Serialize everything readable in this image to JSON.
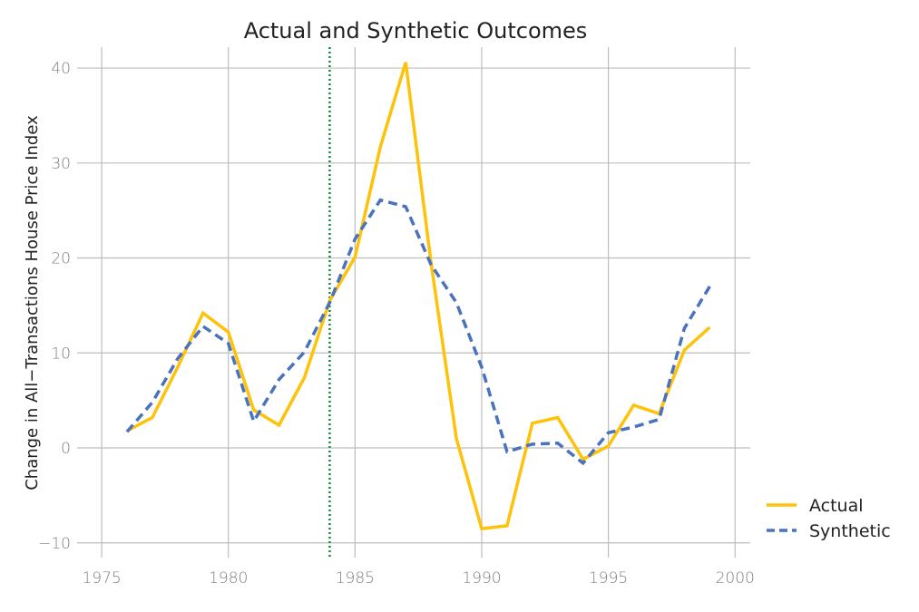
{
  "chart_data": {
    "type": "line",
    "title": "Actual and Synthetic Outcomes",
    "xlabel": "",
    "ylabel": "Change in All−Transactions House Price Index",
    "xlim": [
      1974.03,
      2000.6
    ],
    "ylim": [
      -11.55,
      42.2
    ],
    "xticks": [
      "1975",
      "1980",
      "1985",
      "1990",
      "1995",
      "2000"
    ],
    "xtick_values": [
      1975,
      1980,
      1985,
      1990,
      1995,
      2000
    ],
    "yticks": [
      "−10",
      "0",
      "10",
      "20",
      "30",
      "40"
    ],
    "ytick_values": [
      -10,
      0,
      10,
      20,
      30,
      40
    ],
    "grid": true,
    "legend_position": "right",
    "treatment_line": {
      "x": 1984,
      "color": "#1a8a3a",
      "style": "dotted"
    },
    "x": [
      1976,
      1977,
      1978,
      1979,
      1980,
      1981,
      1982,
      1983,
      1984,
      1985,
      1986,
      1987,
      1988,
      1989,
      1990,
      1991,
      1992,
      1993,
      1994,
      1995,
      1996,
      1997,
      1998,
      1999
    ],
    "series": [
      {
        "name": "Actual",
        "color": "#ffc20a",
        "style": "solid",
        "values": [
          1.8,
          3.2,
          8.5,
          14.2,
          12.2,
          4.0,
          2.4,
          7.4,
          15.5,
          20.1,
          31.7,
          40.6,
          19.5,
          1.0,
          -8.5,
          -8.2,
          2.6,
          3.2,
          -1.2,
          0.2,
          4.5,
          3.6,
          10.3,
          12.7
        ]
      },
      {
        "name": "Synthetic",
        "color": "#4a72bd",
        "style": "dashed",
        "values": [
          1.7,
          4.8,
          9.4,
          12.8,
          11.0,
          2.8,
          7.2,
          10.1,
          15.3,
          22.0,
          26.1,
          25.4,
          19.3,
          15.3,
          8.5,
          -0.4,
          0.4,
          0.5,
          -1.6,
          1.6,
          2.2,
          3.0,
          12.6,
          17.0
        ]
      }
    ]
  }
}
